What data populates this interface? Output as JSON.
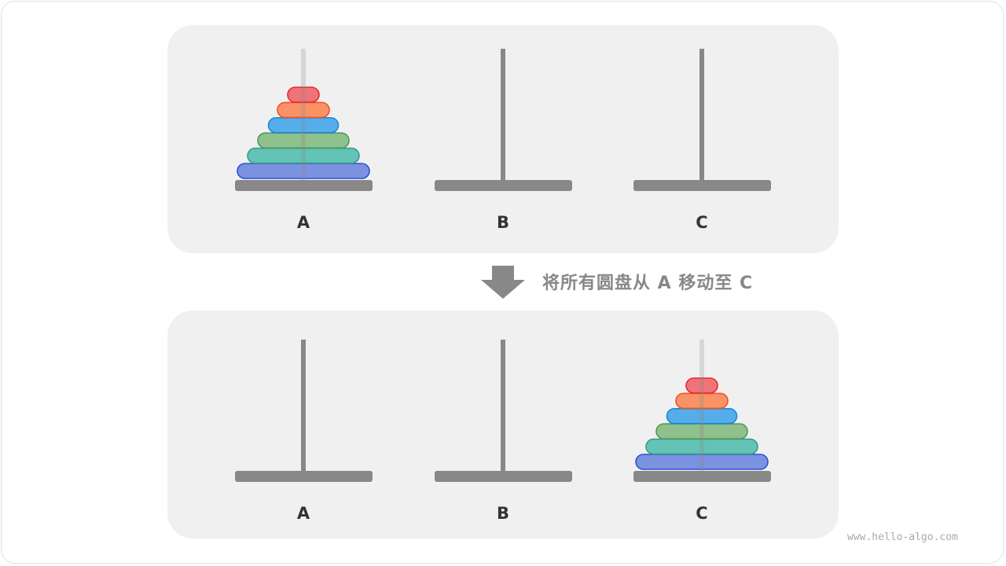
{
  "caption": "将所有圆盘从 A 移动至 C",
  "watermark": "www.hello-algo.com",
  "rod_labels": [
    "A",
    "B",
    "C"
  ],
  "colors": {
    "panel": "#f0f0f0",
    "rod": "#888888",
    "arrow": "#888888",
    "disks": [
      {
        "fill": "#ef6b70",
        "stroke": "#e8262c"
      },
      {
        "fill": "#fa8c5c",
        "stroke": "#f4511e"
      },
      {
        "fill": "#4aa8ea",
        "stroke": "#1e88d4"
      },
      {
        "fill": "#88bd84",
        "stroke": "#4f9a56"
      },
      {
        "fill": "#58bfb2",
        "stroke": "#3a9a8c"
      },
      {
        "fill": "#728be0",
        "stroke": "#2f4fd6"
      }
    ]
  },
  "states": [
    {
      "name": "before",
      "disks_on_rod": "A",
      "disk_count": 6
    },
    {
      "name": "after",
      "disks_on_rod": "C",
      "disk_count": 6
    }
  ]
}
